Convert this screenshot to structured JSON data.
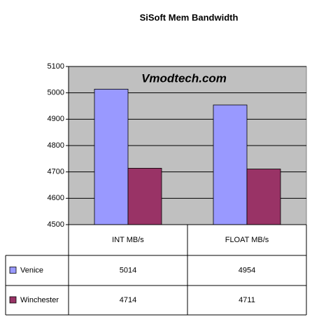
{
  "chart_data": {
    "type": "bar",
    "title": "SiSoft Mem Bandwidth",
    "annotation": "Vmodtech.com",
    "categories": [
      "INT MB/s",
      "FLOAT MB/s"
    ],
    "series": [
      {
        "name": "Venice",
        "color": "#9999ff",
        "values": [
          5014,
          4954
        ]
      },
      {
        "name": "Winchester",
        "color": "#993366",
        "values": [
          4714,
          4711
        ]
      }
    ],
    "ylim": [
      4500,
      5100
    ],
    "yticks": [
      4500,
      4600,
      4700,
      4800,
      4900,
      5000,
      5100
    ],
    "grid": true,
    "plot_background": "#c0c0c0"
  }
}
